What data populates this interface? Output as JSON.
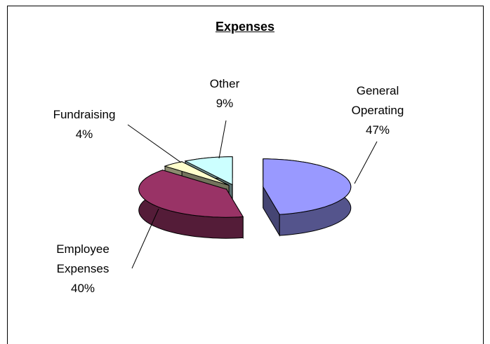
{
  "chart_data": {
    "type": "pie",
    "title": "Expenses",
    "categories": [
      "General Operating",
      "Employee Expenses",
      "Fundraising",
      "Other"
    ],
    "values": [
      47,
      40,
      4,
      9
    ],
    "value_labels": [
      "47%",
      "40%",
      "4%",
      "9%"
    ],
    "colors": [
      "#9999ff",
      "#993366",
      "#ffffcc",
      "#ccffff"
    ]
  }
}
